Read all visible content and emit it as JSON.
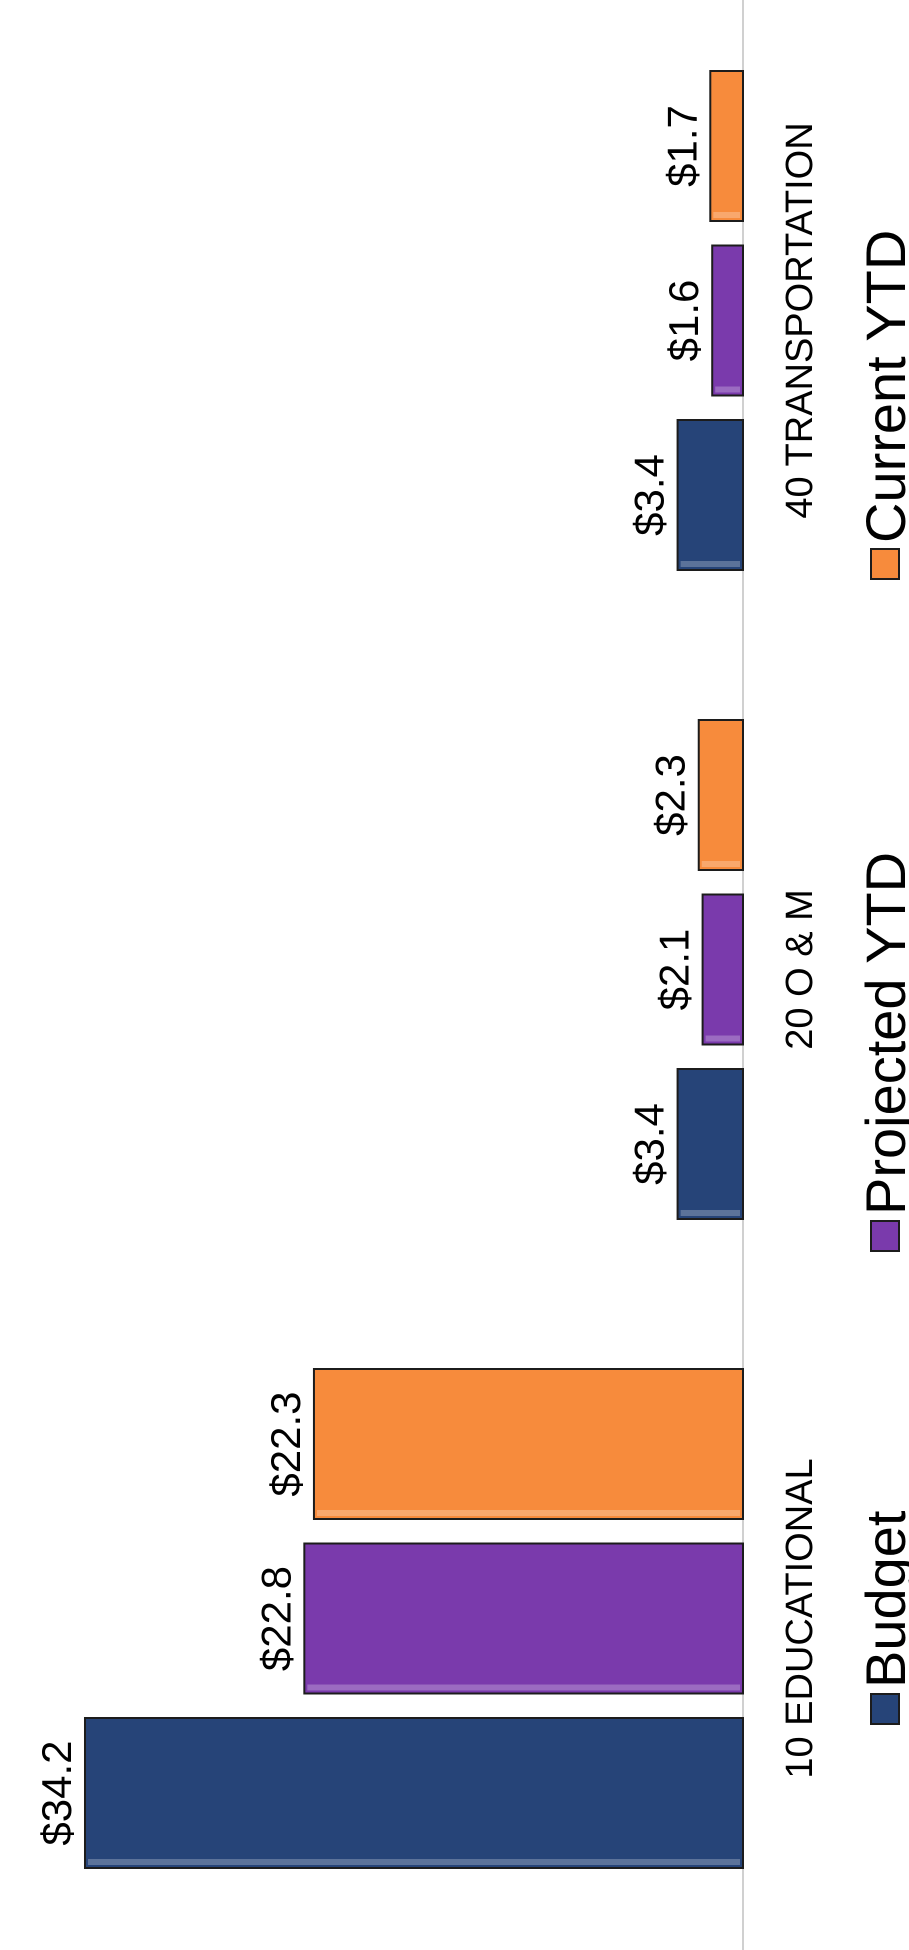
{
  "chart_data": {
    "type": "bar",
    "categories": [
      "10 EDUCATIONAL",
      "20 O & M",
      "40 TRANSPORTATION"
    ],
    "series": [
      {
        "name": "Budget",
        "color": "#264478",
        "values": [
          34.2,
          3.4,
          3.4
        ],
        "value_labels": [
          "$34.2",
          "$3.4",
          "$3.4"
        ]
      },
      {
        "name": "Projected YTD",
        "color": "#7a3aac",
        "values": [
          22.8,
          2.1,
          1.6
        ],
        "value_labels": [
          "$22.8",
          "$2.1",
          "$1.6"
        ]
      },
      {
        "name": "Current YTD",
        "color": "#f78b3c",
        "values": [
          22.3,
          2.3,
          1.7
        ],
        "value_labels": [
          "$22.3",
          "$2.3",
          "$1.7"
        ]
      }
    ],
    "legend": "bottom"
  }
}
